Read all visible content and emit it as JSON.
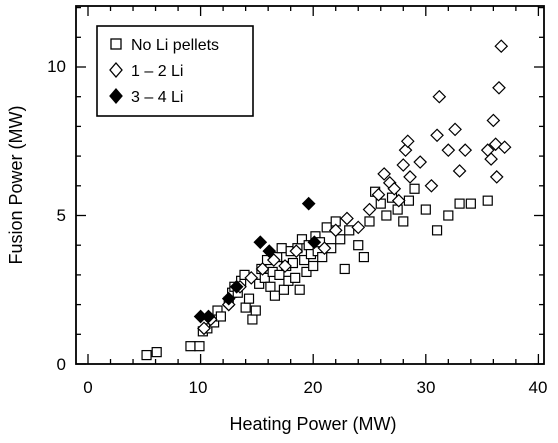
{
  "chart_data": {
    "type": "scatter",
    "xlabel": "Heating Power (MW)",
    "ylabel": "Fusion Power (MW)",
    "xlim": [
      0,
      40
    ],
    "ylim": [
      0,
      12
    ],
    "x_ticks": [
      "0",
      "10",
      "20",
      "30",
      "40"
    ],
    "y_ticks": [
      "0",
      "5",
      "10"
    ],
    "legend_position": "top-left",
    "series": [
      {
        "name": "No Li pellets",
        "marker": "open-square",
        "color": "#000000",
        "points": [
          [
            5.2,
            0.3
          ],
          [
            6.1,
            0.4
          ],
          [
            9.1,
            0.6
          ],
          [
            9.9,
            0.6
          ],
          [
            10.2,
            1.1
          ],
          [
            10.6,
            1.2
          ],
          [
            11.2,
            1.4
          ],
          [
            11.5,
            1.8
          ],
          [
            11.8,
            1.6
          ],
          [
            12.5,
            2.1
          ],
          [
            12.8,
            2.4
          ],
          [
            13.0,
            2.6
          ],
          [
            13.3,
            2.4
          ],
          [
            13.6,
            2.8
          ],
          [
            13.9,
            3.0
          ],
          [
            14.0,
            1.9
          ],
          [
            14.3,
            2.2
          ],
          [
            14.6,
            1.5
          ],
          [
            14.9,
            1.8
          ],
          [
            15.2,
            2.7
          ],
          [
            15.4,
            3.2
          ],
          [
            15.7,
            2.9
          ],
          [
            15.9,
            3.5
          ],
          [
            16.2,
            2.6
          ],
          [
            16.4,
            3.1
          ],
          [
            16.6,
            2.3
          ],
          [
            16.8,
            3.6
          ],
          [
            17.0,
            3.0
          ],
          [
            17.2,
            3.9
          ],
          [
            17.4,
            2.5
          ],
          [
            17.6,
            3.3
          ],
          [
            17.8,
            2.8
          ],
          [
            18.0,
            3.8
          ],
          [
            18.2,
            3.4
          ],
          [
            18.4,
            2.9
          ],
          [
            18.6,
            3.9
          ],
          [
            18.8,
            2.5
          ],
          [
            19.0,
            4.2
          ],
          [
            19.2,
            3.5
          ],
          [
            19.4,
            3.1
          ],
          [
            19.6,
            4.0
          ],
          [
            19.8,
            3.7
          ],
          [
            20.0,
            3.3
          ],
          [
            20.2,
            4.3
          ],
          [
            20.4,
            3.8
          ],
          [
            20.6,
            4.1
          ],
          [
            20.8,
            3.6
          ],
          [
            21.2,
            4.6
          ],
          [
            21.6,
            3.9
          ],
          [
            22.0,
            4.8
          ],
          [
            22.4,
            4.2
          ],
          [
            22.8,
            3.2
          ],
          [
            23.2,
            4.5
          ],
          [
            24.0,
            4.0
          ],
          [
            24.5,
            3.6
          ],
          [
            25.0,
            4.8
          ],
          [
            25.5,
            5.8
          ],
          [
            26.0,
            5.4
          ],
          [
            26.5,
            5.0
          ],
          [
            27.0,
            5.6
          ],
          [
            27.5,
            5.2
          ],
          [
            28.0,
            4.8
          ],
          [
            28.5,
            5.5
          ],
          [
            29.0,
            5.9
          ],
          [
            30.0,
            5.2
          ],
          [
            31.0,
            4.5
          ],
          [
            32.0,
            5.0
          ],
          [
            33.0,
            5.4
          ],
          [
            34.0,
            5.4
          ],
          [
            35.5,
            5.5
          ]
        ]
      },
      {
        "name": "1 – 2 Li",
        "marker": "open-diamond",
        "color": "#000000",
        "points": [
          [
            10.3,
            1.2
          ],
          [
            10.9,
            1.5
          ],
          [
            12.5,
            2.0
          ],
          [
            13.5,
            2.6
          ],
          [
            14.5,
            2.9
          ],
          [
            15.5,
            3.2
          ],
          [
            16.5,
            3.5
          ],
          [
            17.5,
            3.3
          ],
          [
            18.5,
            3.8
          ],
          [
            21.0,
            3.9
          ],
          [
            22.0,
            4.5
          ],
          [
            23.0,
            4.9
          ],
          [
            24.0,
            4.6
          ],
          [
            25.0,
            5.2
          ],
          [
            25.8,
            5.7
          ],
          [
            26.3,
            6.4
          ],
          [
            26.8,
            6.1
          ],
          [
            27.2,
            5.9
          ],
          [
            27.6,
            5.5
          ],
          [
            28.0,
            6.7
          ],
          [
            28.2,
            7.2
          ],
          [
            28.4,
            7.5
          ],
          [
            28.6,
            6.3
          ],
          [
            29.5,
            6.8
          ],
          [
            30.5,
            6.0
          ],
          [
            31.0,
            7.7
          ],
          [
            31.2,
            9.0
          ],
          [
            32.0,
            7.2
          ],
          [
            32.6,
            7.9
          ],
          [
            33.0,
            6.5
          ],
          [
            33.5,
            7.2
          ],
          [
            35.5,
            7.2
          ],
          [
            35.8,
            6.9
          ],
          [
            36.0,
            8.2
          ],
          [
            36.2,
            7.4
          ],
          [
            36.3,
            6.3
          ],
          [
            36.5,
            9.3
          ],
          [
            36.7,
            10.7
          ],
          [
            37.0,
            7.3
          ]
        ]
      },
      {
        "name": "3 – 4 Li",
        "marker": "filled-diamond",
        "color": "#000000",
        "points": [
          [
            10.0,
            1.6
          ],
          [
            10.7,
            1.6
          ],
          [
            12.5,
            2.2
          ],
          [
            13.2,
            2.6
          ],
          [
            15.3,
            4.1
          ],
          [
            16.1,
            3.8
          ],
          [
            19.6,
            5.4
          ],
          [
            20.1,
            4.1
          ]
        ]
      }
    ]
  }
}
